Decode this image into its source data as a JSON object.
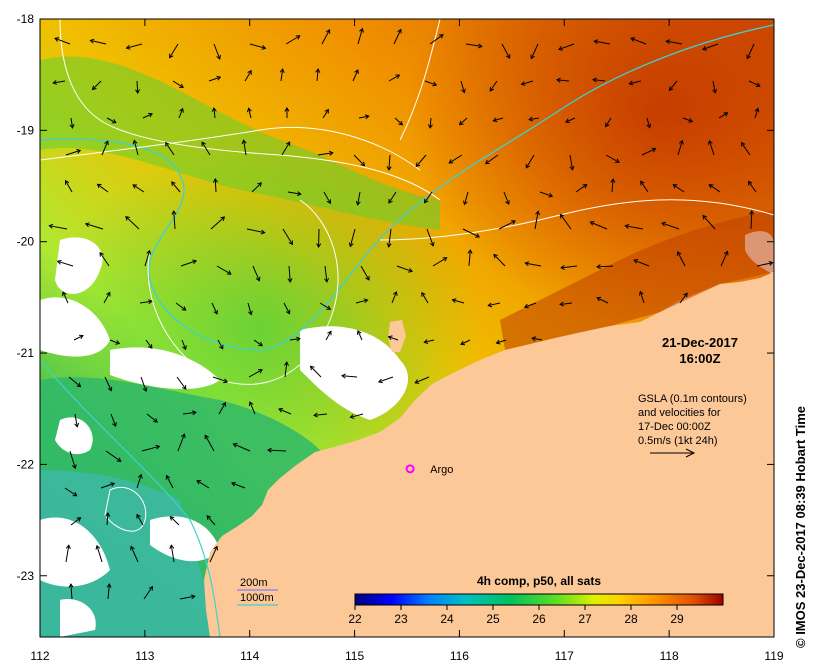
{
  "map": {
    "axes": {
      "lon_ticks": [
        "112",
        "113",
        "114",
        "115",
        "116",
        "117",
        "118",
        "119"
      ],
      "lat_ticks": [
        "-18",
        "-19",
        "-20",
        "-21",
        "-22",
        "-23"
      ],
      "lon_range": [
        112,
        119
      ],
      "lat_range": [
        -23.55,
        -18
      ]
    },
    "timestamp": {
      "date": "21-Dec-2017",
      "time": "16:00Z"
    },
    "gsla_note": {
      "line1": "GSLA (0.1m contours)",
      "line2": "and velocities for",
      "line3": "17-Dec 00:00Z",
      "line4": "0.5m/s (1kt 24h)"
    },
    "argo": {
      "label": "Argo",
      "lon": 115.53,
      "lat": -22.04,
      "color": "#ff00ff"
    },
    "depth_legend": {
      "label_200": "200m",
      "label_1000": "1000m",
      "color_200": "#7f7fff",
      "color_1000": "#40d0d0"
    },
    "colorbar": {
      "title": "4h comp, p50, all sats",
      "labels": [
        "22",
        "23",
        "24",
        "25",
        "26",
        "27",
        "28",
        "29"
      ],
      "range": [
        22,
        30
      ],
      "colors": [
        "#000080",
        "#0000ff",
        "#0080ff",
        "#00c0c0",
        "#00c060",
        "#40d040",
        "#c0f000",
        "#ffd000",
        "#ff9000",
        "#e06000",
        "#a00000"
      ]
    },
    "credit": "© IMOS 23-Dec-2017 08:39 Hobart Time",
    "land_color": "#fcc898"
  }
}
